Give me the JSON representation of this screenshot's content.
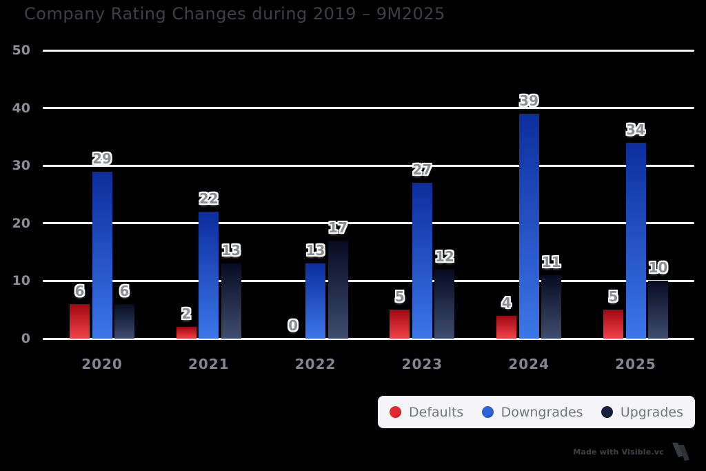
{
  "title": "Company Rating Changes during 2019 – 9M2025",
  "chart_data": {
    "type": "bar",
    "title": "Company Rating Changes during 2019 – 9M2025",
    "categories": [
      "2020",
      "2021",
      "2022",
      "2023",
      "2024",
      "2025"
    ],
    "series": [
      {
        "name": "Defaults",
        "values": [
          6,
          2,
          0,
          5,
          4,
          5
        ],
        "color_top": "#a20710",
        "color_bottom": "#f2424a",
        "legend_color": "#e22830"
      },
      {
        "name": "Downgrades",
        "values": [
          29,
          22,
          13,
          27,
          39,
          34
        ],
        "color_top": "#0c2d9d",
        "color_bottom": "#3c76e8",
        "legend_color": "#2a64da"
      },
      {
        "name": "Upgrades",
        "values": [
          6,
          13,
          17,
          12,
          11,
          10
        ],
        "color_top": "#070b22",
        "color_bottom": "#3e4d6e",
        "legend_color": "#18223e"
      }
    ],
    "xlabel": "",
    "ylabel": "",
    "ylim": [
      0,
      50
    ],
    "yticks": [
      0,
      10,
      20,
      30,
      40,
      50
    ],
    "grid": true,
    "background": "#000000",
    "legend_position": "bottom-right"
  },
  "watermark": {
    "text": "Made with Visible.vc"
  }
}
